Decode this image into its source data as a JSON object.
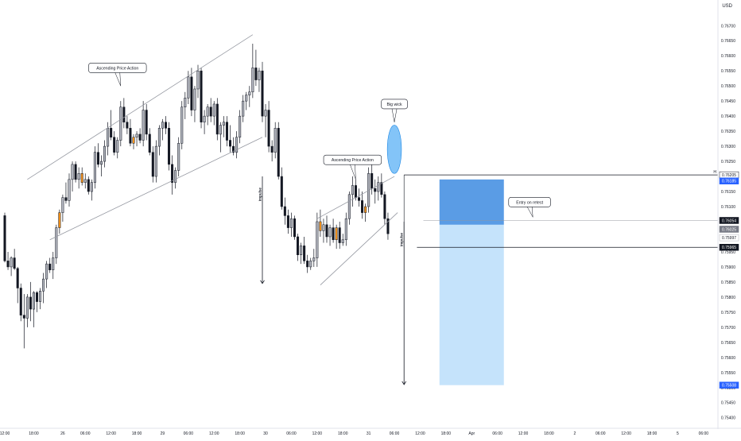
{
  "chart_data": {
    "type": "candlestick",
    "currency": "USD",
    "y_ticks": [
      "0.76750",
      "0.76700",
      "0.76650",
      "0.76600",
      "0.76550",
      "0.76500",
      "0.76450",
      "0.76400",
      "0.76350",
      "0.76300",
      "0.76250",
      "0.76200",
      "0.76150",
      "0.76100",
      "0.76050",
      "0.76000",
      "0.75950",
      "0.75900",
      "0.75850",
      "0.75800",
      "0.75750",
      "0.75700",
      "0.75650",
      "0.75600",
      "0.75550",
      "0.75500",
      "0.75450",
      "0.75400"
    ],
    "ylim": [
      0.75365,
      0.76785
    ],
    "x_ticks": [
      "12:00",
      "18:00",
      "26",
      "06:00",
      "12:00",
      "18:00",
      "29",
      "06:00",
      "12:00",
      "18:00",
      "30",
      "06:00",
      "12:00",
      "18:00",
      "31",
      "06:00",
      "12:00",
      "18:00",
      "Apr",
      "06:00",
      "12:00",
      "18:00",
      "2",
      "06:00",
      "12:00",
      "18:00",
      "5",
      "06:00"
    ],
    "x_tick_index": [
      0,
      9,
      18,
      25,
      33,
      41,
      49,
      57,
      65,
      73,
      81,
      89,
      97,
      105,
      113,
      121,
      129,
      137,
      145,
      153,
      161,
      169,
      177,
      185,
      193,
      201,
      209,
      217
    ],
    "candle_width_ratio": 0.62,
    "candles": [
      [
        0.7607,
        0.7608,
        0.75915,
        0.7592
      ],
      [
        0.7592,
        0.7595,
        0.7589,
        0.759
      ],
      [
        0.759,
        0.75935,
        0.7587,
        0.7593
      ],
      [
        0.7593,
        0.7596,
        0.7589,
        0.75895
      ],
      [
        0.75895,
        0.759,
        0.7578,
        0.7583
      ],
      [
        0.7583,
        0.75845,
        0.7572,
        0.7574
      ],
      [
        0.7574,
        0.7581,
        0.7563,
        0.7573
      ],
      [
        0.7573,
        0.7581,
        0.757,
        0.758
      ],
      [
        0.758,
        0.7585,
        0.7572,
        0.7576
      ],
      [
        0.7576,
        0.7582,
        0.757,
        0.75815
      ],
      [
        0.75815,
        0.7582,
        0.7575,
        0.75785
      ],
      [
        0.75785,
        0.7583,
        0.7576,
        0.7582
      ],
      [
        0.7582,
        0.7588,
        0.7578,
        0.7586
      ],
      [
        0.7586,
        0.7592,
        0.7583,
        0.7591
      ],
      [
        0.7591,
        0.7593,
        0.7588,
        0.7589
      ],
      [
        0.7589,
        0.7595,
        0.7586,
        0.7593
      ],
      [
        0.7593,
        0.7604,
        0.7591,
        0.7603
      ],
      [
        0.7603,
        0.7609,
        0.7601,
        0.7608
      ],
      [
        0.7608,
        0.7614,
        0.7605,
        0.7613
      ],
      [
        0.7613,
        0.7618,
        0.7611,
        0.7612
      ],
      [
        0.7612,
        0.7621,
        0.761,
        0.7619
      ],
      [
        0.7619,
        0.7625,
        0.7615,
        0.7624
      ],
      [
        0.7624,
        0.7625,
        0.7618,
        0.7619
      ],
      [
        0.7619,
        0.7623,
        0.7616,
        0.7621
      ],
      [
        0.7621,
        0.7623,
        0.7617,
        0.7618
      ],
      [
        0.7618,
        0.7621,
        0.7616,
        0.7619
      ],
      [
        0.7619,
        0.762,
        0.7614,
        0.7615
      ],
      [
        0.7615,
        0.7619,
        0.7612,
        0.7618
      ],
      [
        0.7618,
        0.763,
        0.7616,
        0.7628
      ],
      [
        0.7628,
        0.7631,
        0.7623,
        0.7624
      ],
      [
        0.7624,
        0.7627,
        0.762,
        0.7625
      ],
      [
        0.7625,
        0.7632,
        0.7623,
        0.763
      ],
      [
        0.763,
        0.7638,
        0.7627,
        0.7636
      ],
      [
        0.7636,
        0.7642,
        0.7632,
        0.7633
      ],
      [
        0.7633,
        0.7635,
        0.7627,
        0.7628
      ],
      [
        0.7628,
        0.7633,
        0.7626,
        0.7632
      ],
      [
        0.7632,
        0.7645,
        0.763,
        0.7643
      ],
      [
        0.7643,
        0.7646,
        0.7636,
        0.7638
      ],
      [
        0.7638,
        0.764,
        0.7634,
        0.7636
      ],
      [
        0.7636,
        0.7639,
        0.763,
        0.7631
      ],
      [
        0.7631,
        0.7634,
        0.7629,
        0.7633
      ],
      [
        0.7633,
        0.7635,
        0.763,
        0.7634
      ],
      [
        0.7634,
        0.7636,
        0.7631,
        0.7632
      ],
      [
        0.7632,
        0.7645,
        0.763,
        0.7642
      ],
      [
        0.7642,
        0.7644,
        0.7632,
        0.7634
      ],
      [
        0.7634,
        0.7636,
        0.7627,
        0.7628
      ],
      [
        0.7628,
        0.763,
        0.7618,
        0.762
      ],
      [
        0.762,
        0.7632,
        0.7618,
        0.763
      ],
      [
        0.763,
        0.7637,
        0.7627,
        0.7636
      ],
      [
        0.7636,
        0.7639,
        0.7632,
        0.7638
      ],
      [
        0.7638,
        0.764,
        0.7634,
        0.7636
      ],
      [
        0.7636,
        0.7638,
        0.7622,
        0.7624
      ],
      [
        0.7624,
        0.7627,
        0.7614,
        0.7618
      ],
      [
        0.7618,
        0.7623,
        0.7616,
        0.7622
      ],
      [
        0.7622,
        0.7633,
        0.762,
        0.7631
      ],
      [
        0.7631,
        0.7645,
        0.7629,
        0.7643
      ],
      [
        0.7643,
        0.7648,
        0.7639,
        0.7646
      ],
      [
        0.7646,
        0.7655,
        0.7644,
        0.7653
      ],
      [
        0.7653,
        0.7656,
        0.764,
        0.7642
      ],
      [
        0.7642,
        0.765,
        0.7638,
        0.7649
      ],
      [
        0.7649,
        0.7657,
        0.7646,
        0.7655
      ],
      [
        0.7655,
        0.7656,
        0.7636,
        0.7638
      ],
      [
        0.7638,
        0.7642,
        0.7634,
        0.764
      ],
      [
        0.764,
        0.7644,
        0.7637,
        0.7643
      ],
      [
        0.7643,
        0.7646,
        0.7638,
        0.764
      ],
      [
        0.764,
        0.7645,
        0.7637,
        0.7644
      ],
      [
        0.7644,
        0.7646,
        0.7632,
        0.7634
      ],
      [
        0.7634,
        0.7638,
        0.7628,
        0.7637
      ],
      [
        0.7637,
        0.764,
        0.7633,
        0.7638
      ],
      [
        0.7638,
        0.764,
        0.763,
        0.7632
      ],
      [
        0.7632,
        0.7637,
        0.7628,
        0.763
      ],
      [
        0.763,
        0.7633,
        0.7627,
        0.7628
      ],
      [
        0.7628,
        0.7635,
        0.7626,
        0.7633
      ],
      [
        0.7633,
        0.7642,
        0.7631,
        0.764
      ],
      [
        0.764,
        0.7647,
        0.7638,
        0.7645
      ],
      [
        0.7645,
        0.7648,
        0.7642,
        0.7647
      ],
      [
        0.7647,
        0.765,
        0.7643,
        0.7648
      ],
      [
        0.7648,
        0.7664,
        0.7646,
        0.7656
      ],
      [
        0.7656,
        0.7662,
        0.765,
        0.7652
      ],
      [
        0.7652,
        0.7656,
        0.7648,
        0.7655
      ],
      [
        0.7655,
        0.7658,
        0.7638,
        0.764
      ],
      [
        0.764,
        0.7644,
        0.7633,
        0.7642
      ],
      [
        0.7642,
        0.7645,
        0.7628,
        0.763
      ],
      [
        0.763,
        0.7632,
        0.7625,
        0.7628
      ],
      [
        0.7628,
        0.7638,
        0.7626,
        0.7636
      ],
      [
        0.7636,
        0.7638,
        0.7619,
        0.762
      ],
      [
        0.762,
        0.7623,
        0.7609,
        0.761
      ],
      [
        0.761,
        0.7613,
        0.7604,
        0.7607
      ],
      [
        0.7607,
        0.7609,
        0.7601,
        0.7603
      ],
      [
        0.7603,
        0.7608,
        0.76,
        0.7606
      ],
      [
        0.7606,
        0.7607,
        0.7599,
        0.76
      ],
      [
        0.76,
        0.7601,
        0.7592,
        0.7594
      ],
      [
        0.7594,
        0.7598,
        0.7591,
        0.7597
      ],
      [
        0.7597,
        0.76,
        0.7591,
        0.7592
      ],
      [
        0.7592,
        0.7594,
        0.7588,
        0.759
      ],
      [
        0.759,
        0.7593,
        0.7589,
        0.7592
      ],
      [
        0.7592,
        0.7596,
        0.759,
        0.7593
      ],
      [
        0.7593,
        0.7608,
        0.759,
        0.7605
      ],
      [
        0.7605,
        0.7609,
        0.76,
        0.7602
      ],
      [
        0.7602,
        0.7606,
        0.7598,
        0.7604
      ],
      [
        0.7604,
        0.7607,
        0.7598,
        0.76
      ],
      [
        0.76,
        0.7604,
        0.7597,
        0.7603
      ],
      [
        0.7603,
        0.7606,
        0.7598,
        0.7599
      ],
      [
        0.7599,
        0.7604,
        0.7596,
        0.7603
      ],
      [
        0.7603,
        0.7605,
        0.7596,
        0.7598
      ],
      [
        0.7598,
        0.7601,
        0.7597,
        0.7599
      ],
      [
        0.7599,
        0.7608,
        0.7597,
        0.7606
      ],
      [
        0.7606,
        0.7615,
        0.7604,
        0.7614
      ],
      [
        0.7614,
        0.762,
        0.761,
        0.7617
      ],
      [
        0.7617,
        0.7619,
        0.7612,
        0.7613
      ],
      [
        0.7613,
        0.7616,
        0.761,
        0.7612
      ],
      [
        0.7612,
        0.7615,
        0.7606,
        0.7608
      ],
      [
        0.7608,
        0.7611,
        0.7605,
        0.761
      ],
      [
        0.761,
        0.7623,
        0.7608,
        0.7621
      ],
      [
        0.7621,
        0.7624,
        0.7614,
        0.7616
      ],
      [
        0.7616,
        0.7619,
        0.7611,
        0.7615
      ],
      [
        0.7615,
        0.762,
        0.7612,
        0.7618
      ],
      [
        0.7618,
        0.7621,
        0.7613,
        0.7614
      ],
      [
        0.7614,
        0.7615,
        0.7604,
        0.7606
      ],
      [
        0.7606,
        0.7608,
        0.7599,
        0.7601
      ]
    ],
    "highlighted_candles": [
      17,
      24,
      40,
      98,
      103,
      112
    ],
    "trend_channels": [
      {
        "upper": [
          [
            7,
            0.7619
          ],
          [
            77,
            0.7667
          ]
        ],
        "lower": [
          [
            14,
            0.7599
          ],
          [
            80,
            0.7633
          ]
        ]
      },
      {
        "upper": [
          [
            97,
            0.7606
          ],
          [
            121,
            0.762
          ]
        ],
        "lower": [
          [
            98,
            0.7584
          ],
          [
            122,
            0.7608
          ]
        ]
      }
    ],
    "annotations": [
      {
        "text": "Ascending Price Action",
        "anchor": [
          35,
          0.7656
        ],
        "pointer": [
          36,
          0.765
        ]
      },
      {
        "text": "Ascending Price Action",
        "anchor": [
          108,
          0.76255
        ],
        "pointer": [
          109,
          0.7619
        ]
      },
      {
        "text": "Big wick",
        "anchor": [
          121,
          0.7644
        ],
        "pointer": [
          121,
          0.7638
        ]
      },
      {
        "text": "Entry on retest",
        "anchor": [
          163,
          0.76115
        ],
        "pointer": [
          164,
          0.76065
        ]
      }
    ],
    "impulse_arrows": [
      {
        "label": "Impulse",
        "x_index": 80,
        "from": 0.762,
        "to": 0.75845
      },
      {
        "label": "Impulse",
        "x_index": 124,
        "from": 0.7605,
        "to": 0.7551
      }
    ],
    "big_wick_ellipse": {
      "x_index": 121,
      "center": 0.7629,
      "half_height": 0.0008,
      "half_width_bars": 2.2
    },
    "position": {
      "start_index": 135,
      "end_index": 155,
      "stop": 0.7619,
      "entry": 0.7604,
      "target": 0.75508,
      "start_label": "H"
    },
    "resistance_box": {
      "start_index": 124,
      "top": 0.76205,
      "bottom": 0.75965
    },
    "price_labels": [
      {
        "text": "0.76205",
        "value": 0.76205,
        "bg": "#ffffff",
        "fg": "#131722",
        "border": "#131722"
      },
      {
        "text": "0.76185",
        "value": 0.76185,
        "bg": "#2962ff",
        "fg": "#ffffff",
        "border": "#2962ff"
      },
      {
        "text": "0.76054",
        "value": 0.76054,
        "bg": "#131722",
        "fg": "#ffffff",
        "border": "#131722"
      },
      {
        "text": "0.76025",
        "value": 0.76025,
        "bg": "#787b86",
        "fg": "#ffffff",
        "border": "#787b86"
      },
      {
        "text": "0.75997",
        "value": 0.75997,
        "bg": "#ffffff",
        "fg": "#131722",
        "border": "#b2b5be"
      },
      {
        "text": "0.75965",
        "value": 0.75965,
        "bg": "#131722",
        "fg": "#ffffff",
        "border": "#131722"
      },
      {
        "text": "0.75508",
        "value": 0.75508,
        "bg": "#2962ff",
        "fg": "#ffffff",
        "border": "#2962ff"
      }
    ],
    "colors": {
      "bull_body": "#b2b5be",
      "bear_body": "#131722",
      "highlight": "#f7931a",
      "channel": "#9598a1",
      "stop_zone": "#3d8be0",
      "target_zone": "#b7dcfa",
      "ellipse": "#64b5f6",
      "axis_text": "#131722",
      "grid": "#e0e3eb"
    }
  }
}
